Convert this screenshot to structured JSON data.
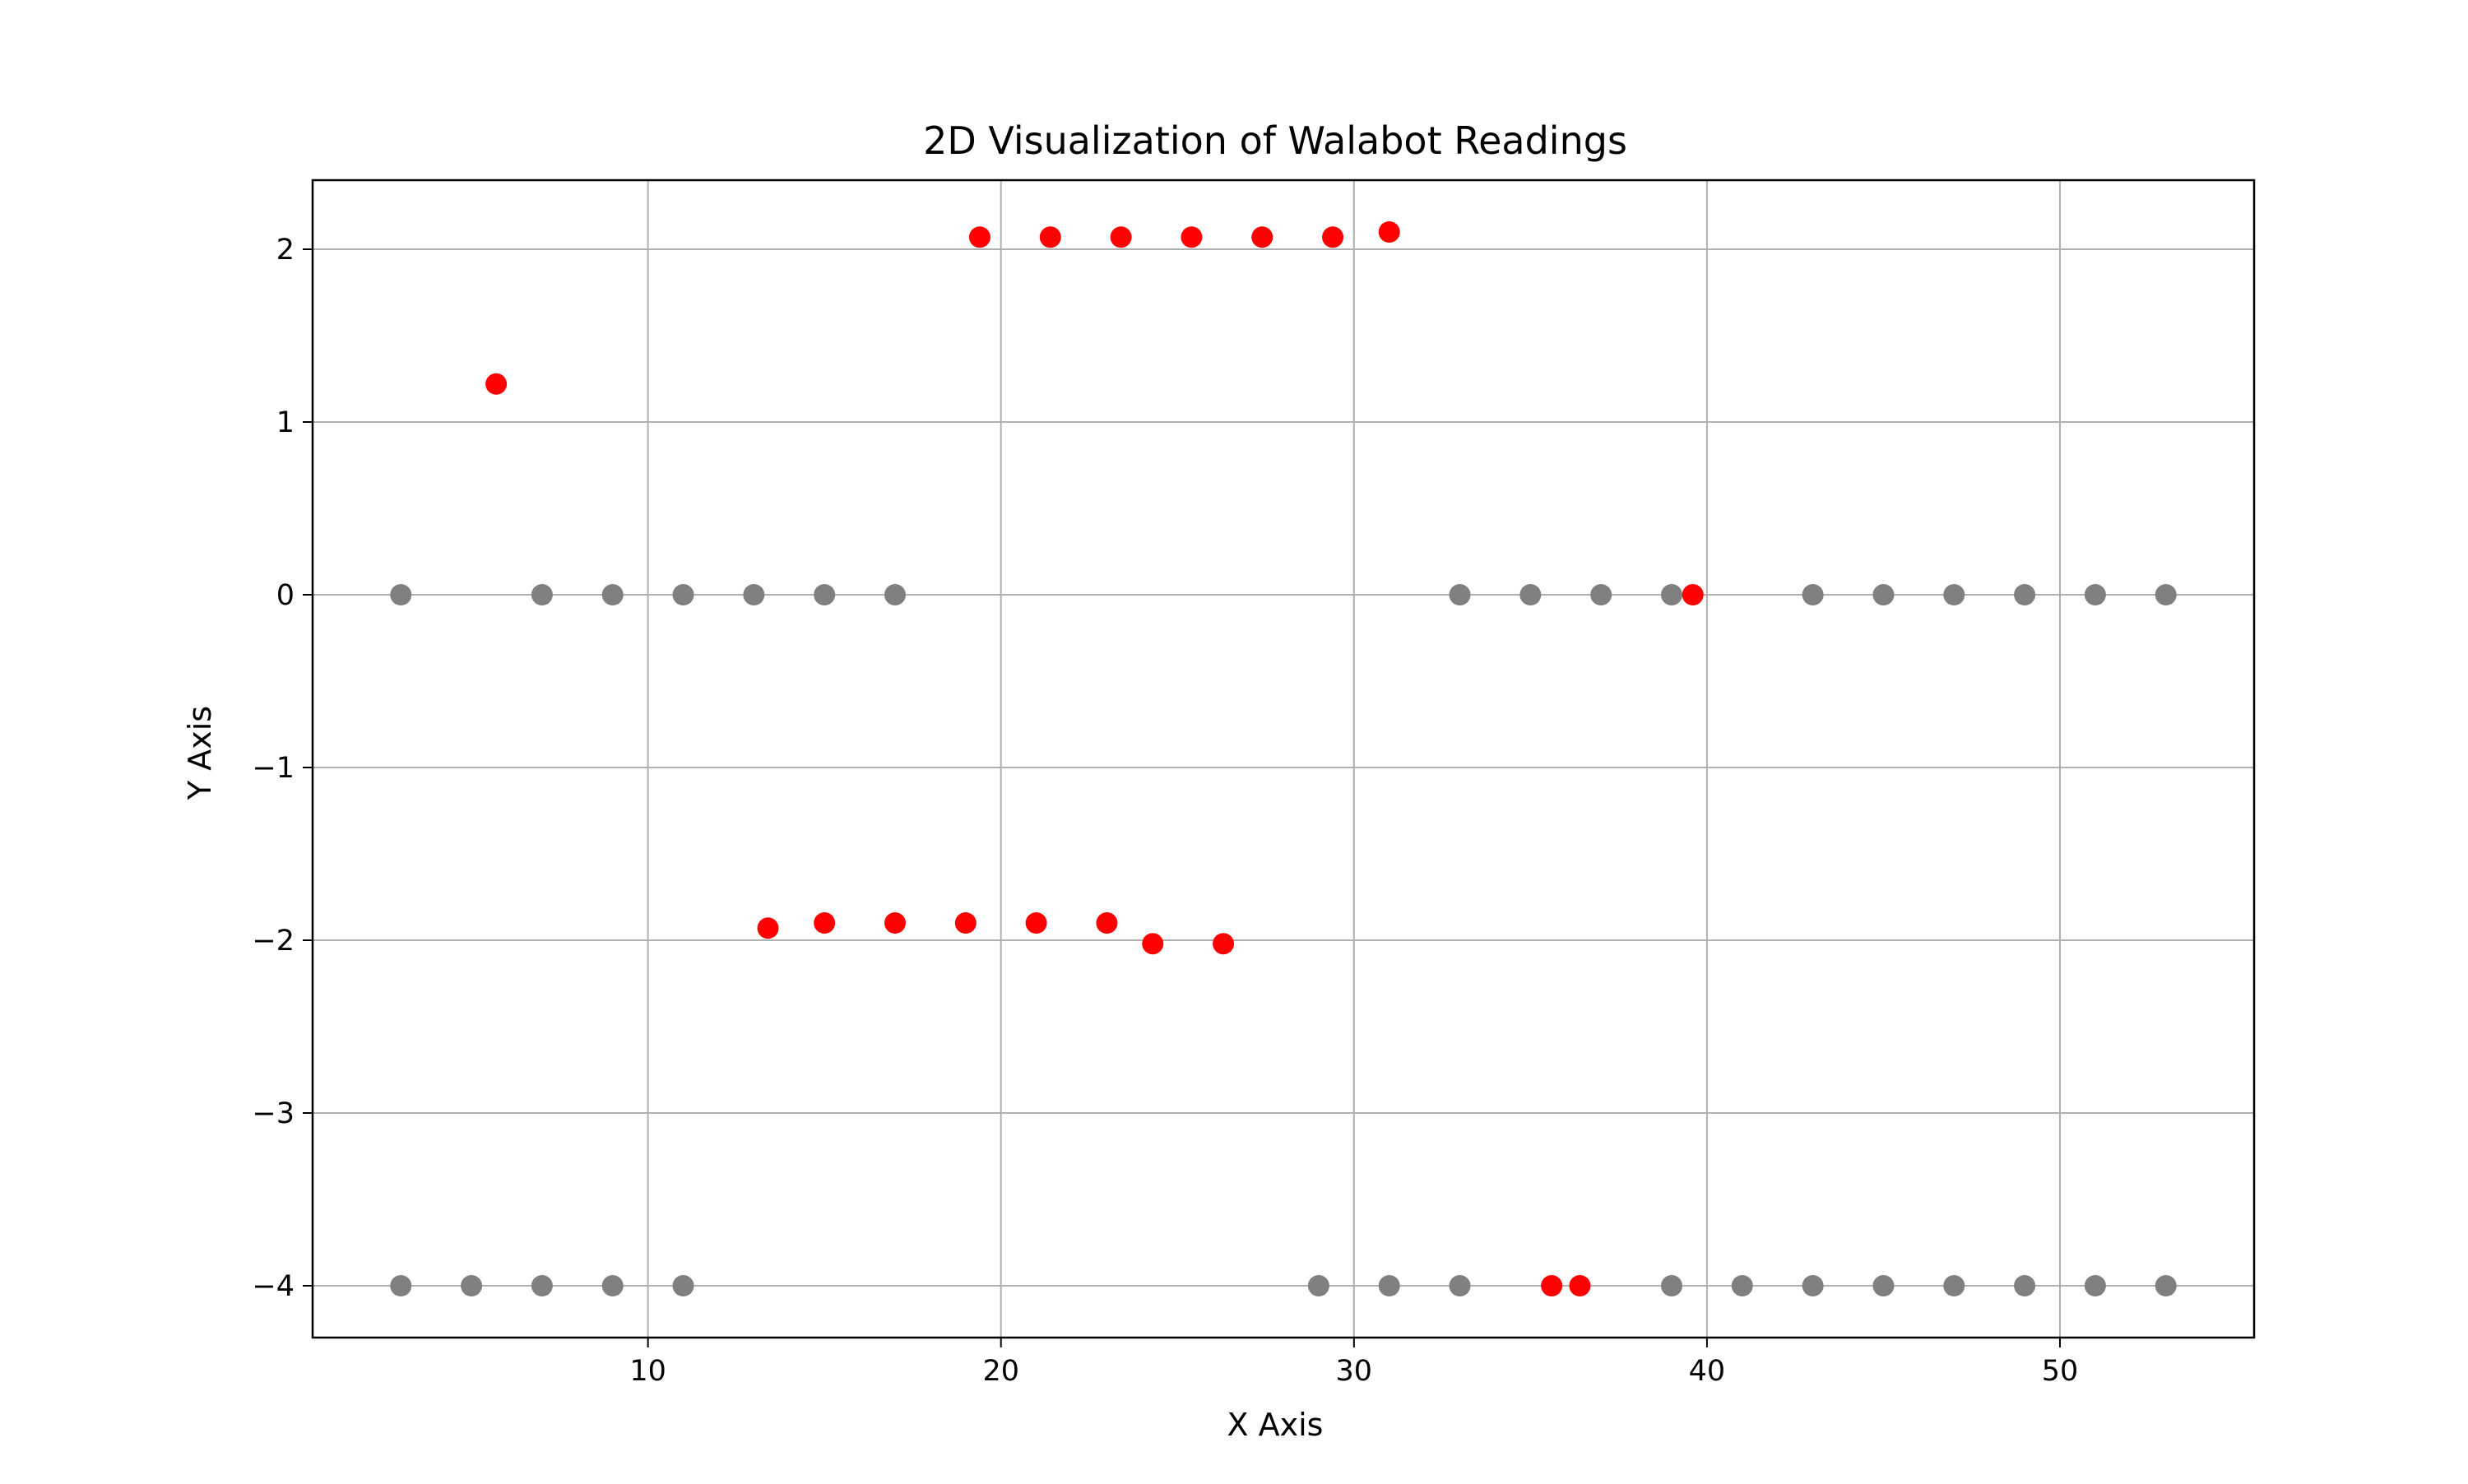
{
  "chart_data": {
    "type": "scatter",
    "title": "2D Visualization of Walabot Readings",
    "xlabel": "X Axis",
    "ylabel": "Y Axis",
    "xlim": [
      0.5,
      55.5
    ],
    "ylim": [
      -4.3,
      2.4
    ],
    "xticks": [
      10,
      20,
      30,
      40,
      50
    ],
    "yticks": [
      2,
      1,
      0,
      -1,
      -2,
      -3,
      -4
    ],
    "xtick_labels": [
      "10",
      "20",
      "30",
      "40",
      "50"
    ],
    "ytick_labels": [
      "2",
      "1",
      "0",
      "−1",
      "−2",
      "−3",
      "−4"
    ],
    "grid": true,
    "series": [
      {
        "color": "#808080",
        "points": [
          [
            3,
            0
          ],
          [
            7,
            0
          ],
          [
            9,
            0
          ],
          [
            11,
            0
          ],
          [
            13,
            0
          ],
          [
            15,
            0
          ],
          [
            17,
            0
          ],
          [
            33,
            0
          ],
          [
            35,
            0
          ],
          [
            37,
            0
          ],
          [
            39,
            0
          ],
          [
            43,
            0
          ],
          [
            45,
            0
          ],
          [
            47,
            0
          ],
          [
            49,
            0
          ],
          [
            51,
            0
          ],
          [
            53,
            0
          ],
          [
            3,
            -4
          ],
          [
            5,
            -4
          ],
          [
            7,
            -4
          ],
          [
            9,
            -4
          ],
          [
            11,
            -4
          ],
          [
            29,
            -4
          ],
          [
            31,
            -4
          ],
          [
            33,
            -4
          ],
          [
            39,
            -4
          ],
          [
            41,
            -4
          ],
          [
            43,
            -4
          ],
          [
            45,
            -4
          ],
          [
            47,
            -4
          ],
          [
            49,
            -4
          ],
          [
            51,
            -4
          ],
          [
            53,
            -4
          ]
        ]
      },
      {
        "color": "#ff0000",
        "points": [
          [
            5.7,
            1.22
          ],
          [
            19.4,
            2.07
          ],
          [
            21.4,
            2.07
          ],
          [
            23.4,
            2.07
          ],
          [
            25.4,
            2.07
          ],
          [
            27.4,
            2.07
          ],
          [
            29.4,
            2.07
          ],
          [
            31,
            2.1
          ],
          [
            39.6,
            0
          ],
          [
            13.4,
            -1.93
          ],
          [
            15,
            -1.9
          ],
          [
            17,
            -1.9
          ],
          [
            19,
            -1.9
          ],
          [
            21,
            -1.9
          ],
          [
            23,
            -1.9
          ],
          [
            24.3,
            -2.02
          ],
          [
            26.3,
            -2.02
          ],
          [
            35.6,
            -4
          ],
          [
            36.4,
            -4
          ]
        ]
      }
    ]
  }
}
